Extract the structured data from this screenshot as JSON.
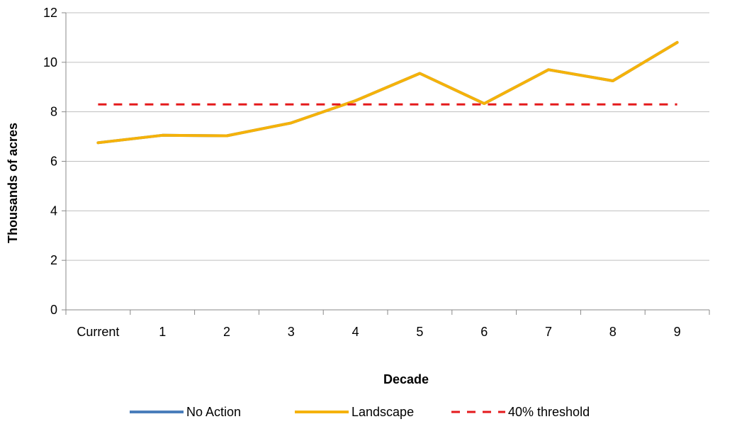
{
  "chart_data": {
    "type": "line",
    "title": "",
    "xlabel": "Decade",
    "ylabel": "Thousands of acres",
    "categories": [
      "Current",
      "1",
      "2",
      "3",
      "4",
      "5",
      "6",
      "7",
      "8",
      "9"
    ],
    "ylim": [
      0,
      12
    ],
    "yticks": [
      "0",
      "2",
      "4",
      "6",
      "8",
      "10",
      "12"
    ],
    "grid": true,
    "legend_position": "bottom",
    "series": [
      {
        "name": "No Action",
        "color": "#4a7ebb",
        "dash": "solid",
        "values": [
          6.75,
          7.05,
          7.03,
          7.55,
          8.45,
          9.55,
          8.33,
          9.7,
          9.25,
          10.8
        ]
      },
      {
        "name": "Landscape",
        "color": "#f5b20a",
        "dash": "solid",
        "values": [
          6.75,
          7.05,
          7.03,
          7.55,
          8.45,
          9.55,
          8.33,
          9.7,
          9.25,
          10.8
        ]
      },
      {
        "name": "40% threshold",
        "color": "#e41a1c",
        "dash": "dashed",
        "values": [
          8.3,
          8.3,
          8.3,
          8.3,
          8.3,
          8.3,
          8.3,
          8.3,
          8.3,
          8.3
        ]
      }
    ]
  }
}
